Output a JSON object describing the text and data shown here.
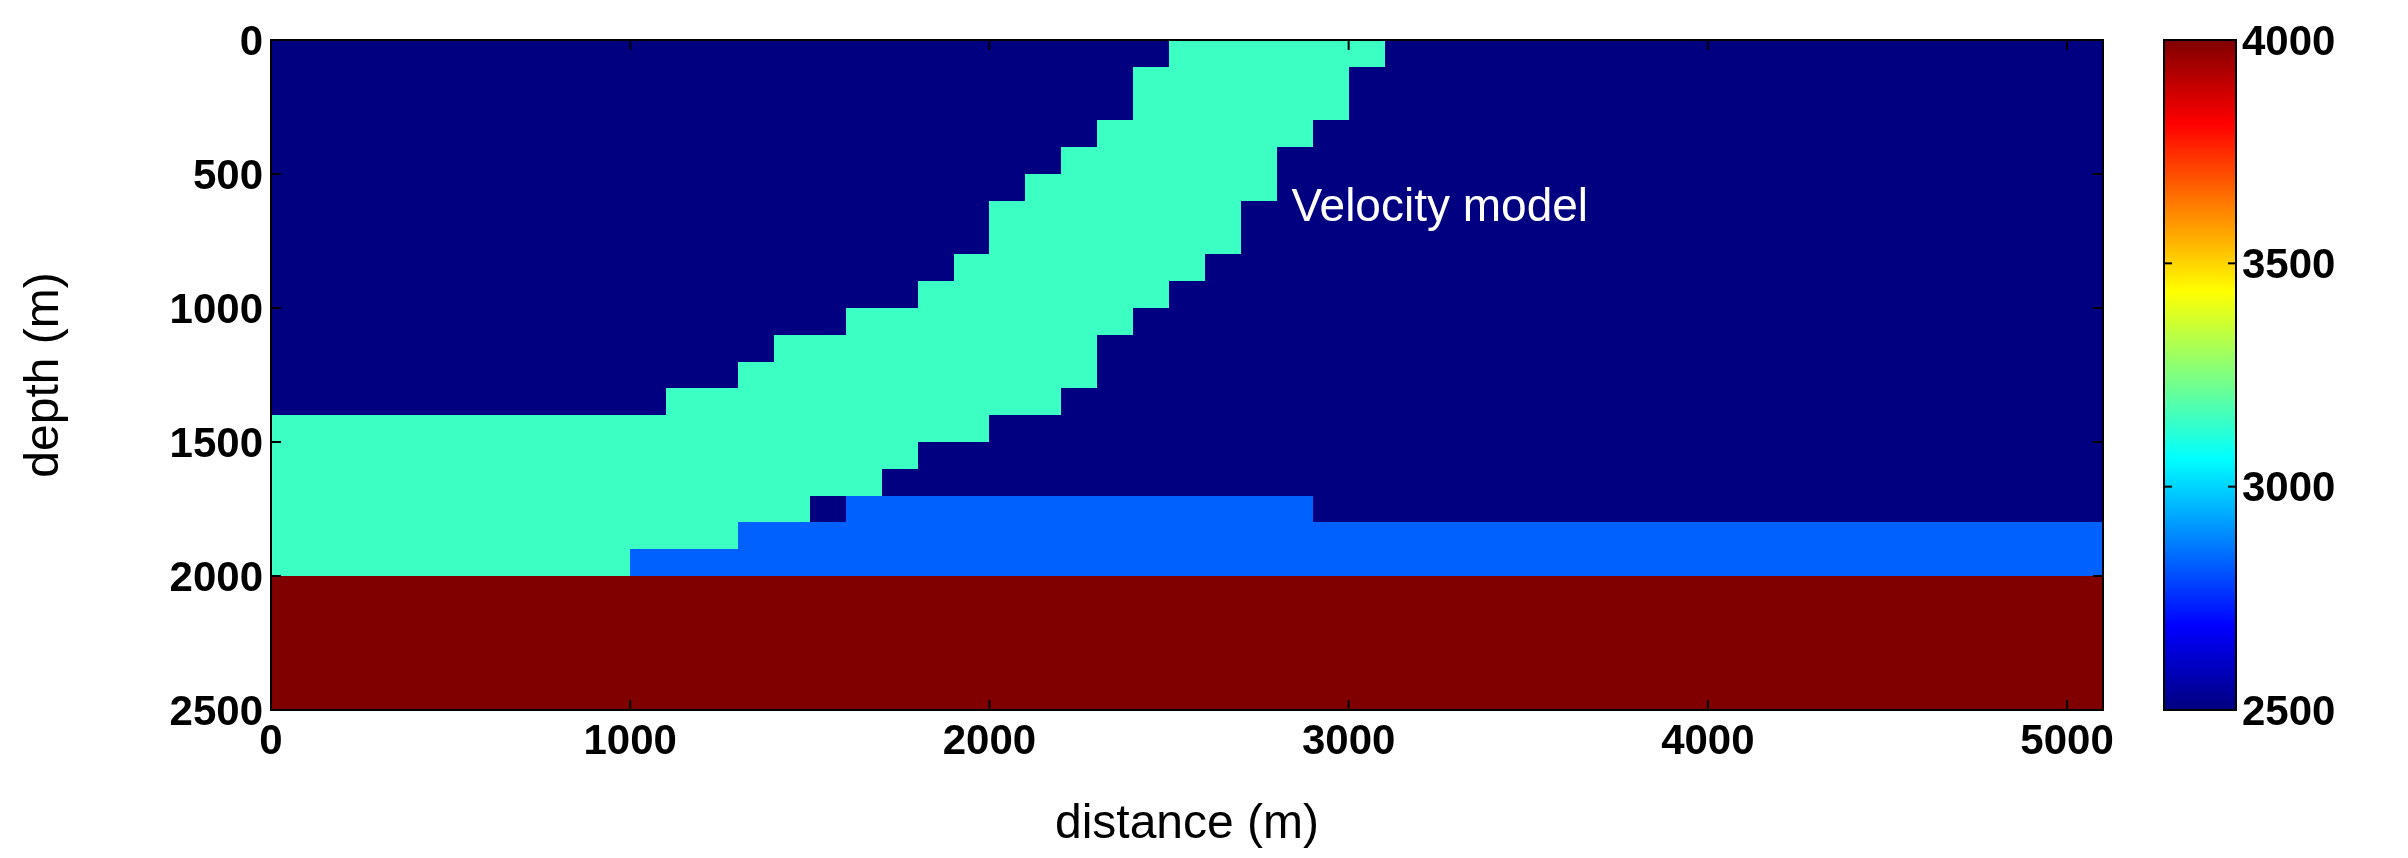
{
  "chart_data": {
    "type": "heatmap",
    "xlabel": "distance (m)",
    "ylabel": "depth (m)",
    "annotations": [
      "Velocity model"
    ],
    "xlim": [
      0,
      5100
    ],
    "xticks": [
      0,
      1000,
      2000,
      3000,
      4000,
      5000
    ],
    "ylim": [
      2500,
      0
    ],
    "yticks": [
      0,
      500,
      1000,
      1500,
      2000,
      2500
    ],
    "clim": [
      2500,
      4000
    ],
    "cticks": [
      2500,
      3000,
      3500,
      4000
    ],
    "x": [
      50,
      150,
      250,
      350,
      450,
      550,
      650,
      750,
      850,
      950,
      1050,
      1150,
      1250,
      1350,
      1450,
      1550,
      1650,
      1750,
      1850,
      1950,
      2050,
      2150,
      2250,
      2350,
      2450,
      2550,
      2650,
      2750,
      2850,
      2950,
      3050,
      3150,
      3250,
      3350,
      3450,
      3550,
      3650,
      3750,
      3850,
      3950,
      4050,
      4150,
      4250,
      4350,
      4450,
      4550,
      4650,
      4750,
      4850,
      4950,
      5050
    ],
    "y": [
      50,
      150,
      250,
      350,
      450,
      550,
      650,
      750,
      850,
      950,
      1050,
      1150,
      1250,
      1350,
      1450,
      1550,
      1650,
      1750,
      1850,
      1950,
      2050,
      2150,
      2250,
      2350,
      2450
    ],
    "cells": [
      [
        2500,
        2500,
        2500,
        2500,
        2500,
        2500,
        2500,
        2500,
        2500,
        2500,
        2500,
        2500,
        2500,
        2500,
        2500,
        2500,
        2500,
        2500,
        2500,
        2500,
        2500,
        2500,
        2500,
        2500,
        2500,
        3150,
        3150,
        3150,
        3150,
        3150,
        3150,
        2500,
        2500,
        2500,
        2500,
        2500,
        2500,
        2500,
        2500,
        2500,
        2500,
        2500,
        2500,
        2500,
        2500,
        2500,
        2500,
        2500,
        2500,
        2500,
        2500
      ],
      [
        2500,
        2500,
        2500,
        2500,
        2500,
        2500,
        2500,
        2500,
        2500,
        2500,
        2500,
        2500,
        2500,
        2500,
        2500,
        2500,
        2500,
        2500,
        2500,
        2500,
        2500,
        2500,
        2500,
        2500,
        3150,
        3150,
        3150,
        3150,
        3150,
        3150,
        2500,
        2500,
        2500,
        2500,
        2500,
        2500,
        2500,
        2500,
        2500,
        2500,
        2500,
        2500,
        2500,
        2500,
        2500,
        2500,
        2500,
        2500,
        2500,
        2500,
        2500
      ],
      [
        2500,
        2500,
        2500,
        2500,
        2500,
        2500,
        2500,
        2500,
        2500,
        2500,
        2500,
        2500,
        2500,
        2500,
        2500,
        2500,
        2500,
        2500,
        2500,
        2500,
        2500,
        2500,
        2500,
        2500,
        3150,
        3150,
        3150,
        3150,
        3150,
        3150,
        2500,
        2500,
        2500,
        2500,
        2500,
        2500,
        2500,
        2500,
        2500,
        2500,
        2500,
        2500,
        2500,
        2500,
        2500,
        2500,
        2500,
        2500,
        2500,
        2500,
        2500
      ],
      [
        2500,
        2500,
        2500,
        2500,
        2500,
        2500,
        2500,
        2500,
        2500,
        2500,
        2500,
        2500,
        2500,
        2500,
        2500,
        2500,
        2500,
        2500,
        2500,
        2500,
        2500,
        2500,
        2500,
        3150,
        3150,
        3150,
        3150,
        3150,
        3150,
        2500,
        2500,
        2500,
        2500,
        2500,
        2500,
        2500,
        2500,
        2500,
        2500,
        2500,
        2500,
        2500,
        2500,
        2500,
        2500,
        2500,
        2500,
        2500,
        2500,
        2500,
        2500
      ],
      [
        2500,
        2500,
        2500,
        2500,
        2500,
        2500,
        2500,
        2500,
        2500,
        2500,
        2500,
        2500,
        2500,
        2500,
        2500,
        2500,
        2500,
        2500,
        2500,
        2500,
        2500,
        2500,
        3150,
        3150,
        3150,
        3150,
        3150,
        3150,
        2500,
        2500,
        2500,
        2500,
        2500,
        2500,
        2500,
        2500,
        2500,
        2500,
        2500,
        2500,
        2500,
        2500,
        2500,
        2500,
        2500,
        2500,
        2500,
        2500,
        2500,
        2500,
        2500
      ],
      [
        2500,
        2500,
        2500,
        2500,
        2500,
        2500,
        2500,
        2500,
        2500,
        2500,
        2500,
        2500,
        2500,
        2500,
        2500,
        2500,
        2500,
        2500,
        2500,
        2500,
        2500,
        3150,
        3150,
        3150,
        3150,
        3150,
        3150,
        3150,
        2500,
        2500,
        2500,
        2500,
        2500,
        2500,
        2500,
        2500,
        2500,
        2500,
        2500,
        2500,
        2500,
        2500,
        2500,
        2500,
        2500,
        2500,
        2500,
        2500,
        2500,
        2500,
        2500
      ],
      [
        2500,
        2500,
        2500,
        2500,
        2500,
        2500,
        2500,
        2500,
        2500,
        2500,
        2500,
        2500,
        2500,
        2500,
        2500,
        2500,
        2500,
        2500,
        2500,
        2500,
        3150,
        3150,
        3150,
        3150,
        3150,
        3150,
        3150,
        2500,
        2500,
        2500,
        2500,
        2500,
        2500,
        2500,
        2500,
        2500,
        2500,
        2500,
        2500,
        2500,
        2500,
        2500,
        2500,
        2500,
        2500,
        2500,
        2500,
        2500,
        2500,
        2500,
        2500
      ],
      [
        2500,
        2500,
        2500,
        2500,
        2500,
        2500,
        2500,
        2500,
        2500,
        2500,
        2500,
        2500,
        2500,
        2500,
        2500,
        2500,
        2500,
        2500,
        2500,
        2500,
        3150,
        3150,
        3150,
        3150,
        3150,
        3150,
        3150,
        2500,
        2500,
        2500,
        2500,
        2500,
        2500,
        2500,
        2500,
        2500,
        2500,
        2500,
        2500,
        2500,
        2500,
        2500,
        2500,
        2500,
        2500,
        2500,
        2500,
        2500,
        2500,
        2500,
        2500
      ],
      [
        2500,
        2500,
        2500,
        2500,
        2500,
        2500,
        2500,
        2500,
        2500,
        2500,
        2500,
        2500,
        2500,
        2500,
        2500,
        2500,
        2500,
        2500,
        2500,
        3150,
        3150,
        3150,
        3150,
        3150,
        3150,
        3150,
        2500,
        2500,
        2500,
        2500,
        2500,
        2500,
        2500,
        2500,
        2500,
        2500,
        2500,
        2500,
        2500,
        2500,
        2500,
        2500,
        2500,
        2500,
        2500,
        2500,
        2500,
        2500,
        2500,
        2500,
        2500
      ],
      [
        2500,
        2500,
        2500,
        2500,
        2500,
        2500,
        2500,
        2500,
        2500,
        2500,
        2500,
        2500,
        2500,
        2500,
        2500,
        2500,
        2500,
        2500,
        3150,
        3150,
        3150,
        3150,
        3150,
        3150,
        3150,
        2500,
        2500,
        2500,
        2500,
        2500,
        2500,
        2500,
        2500,
        2500,
        2500,
        2500,
        2500,
        2500,
        2500,
        2500,
        2500,
        2500,
        2500,
        2500,
        2500,
        2500,
        2500,
        2500,
        2500,
        2500,
        2500
      ],
      [
        2500,
        2500,
        2500,
        2500,
        2500,
        2500,
        2500,
        2500,
        2500,
        2500,
        2500,
        2500,
        2500,
        2500,
        2500,
        2500,
        3150,
        3150,
        3150,
        3150,
        3150,
        3150,
        3150,
        3150,
        2500,
        2500,
        2500,
        2500,
        2500,
        2500,
        2500,
        2500,
        2500,
        2500,
        2500,
        2500,
        2500,
        2500,
        2500,
        2500,
        2500,
        2500,
        2500,
        2500,
        2500,
        2500,
        2500,
        2500,
        2500,
        2500,
        2500
      ],
      [
        2500,
        2500,
        2500,
        2500,
        2500,
        2500,
        2500,
        2500,
        2500,
        2500,
        2500,
        2500,
        2500,
        2500,
        3150,
        3150,
        3150,
        3150,
        3150,
        3150,
        3150,
        3150,
        3150,
        2500,
        2500,
        2500,
        2500,
        2500,
        2500,
        2500,
        2500,
        2500,
        2500,
        2500,
        2500,
        2500,
        2500,
        2500,
        2500,
        2500,
        2500,
        2500,
        2500,
        2500,
        2500,
        2500,
        2500,
        2500,
        2500,
        2500,
        2500
      ],
      [
        2500,
        2500,
        2500,
        2500,
        2500,
        2500,
        2500,
        2500,
        2500,
        2500,
        2500,
        2500,
        2500,
        3150,
        3150,
        3150,
        3150,
        3150,
        3150,
        3150,
        3150,
        3150,
        3150,
        2500,
        2500,
        2500,
        2500,
        2500,
        2500,
        2500,
        2500,
        2500,
        2500,
        2500,
        2500,
        2500,
        2500,
        2500,
        2500,
        2500,
        2500,
        2500,
        2500,
        2500,
        2500,
        2500,
        2500,
        2500,
        2500,
        2500,
        2500
      ],
      [
        2500,
        2500,
        2500,
        2500,
        2500,
        2500,
        2500,
        2500,
        2500,
        2500,
        2500,
        3150,
        3150,
        3150,
        3150,
        3150,
        3150,
        3150,
        3150,
        3150,
        3150,
        3150,
        2500,
        2500,
        2500,
        2500,
        2500,
        2500,
        2500,
        2500,
        2500,
        2500,
        2500,
        2500,
        2500,
        2500,
        2500,
        2500,
        2500,
        2500,
        2500,
        2500,
        2500,
        2500,
        2500,
        2500,
        2500,
        2500,
        2500,
        2500,
        2500
      ],
      [
        3150,
        3150,
        3150,
        3150,
        3150,
        3150,
        3150,
        3150,
        3150,
        3150,
        3150,
        3150,
        3150,
        3150,
        3150,
        3150,
        3150,
        3150,
        3150,
        3150,
        2500,
        2500,
        2500,
        2500,
        2500,
        2500,
        2500,
        2500,
        2500,
        2500,
        2500,
        2500,
        2500,
        2500,
        2500,
        2500,
        2500,
        2500,
        2500,
        2500,
        2500,
        2500,
        2500,
        2500,
        2500,
        2500,
        2500,
        2500,
        2500,
        2500,
        2500
      ],
      [
        3150,
        3150,
        3150,
        3150,
        3150,
        3150,
        3150,
        3150,
        3150,
        3150,
        3150,
        3150,
        3150,
        3150,
        3150,
        3150,
        3150,
        3150,
        2500,
        2500,
        2500,
        2500,
        2500,
        2500,
        2500,
        2500,
        2500,
        2500,
        2500,
        2500,
        2500,
        2500,
        2500,
        2500,
        2500,
        2500,
        2500,
        2500,
        2500,
        2500,
        2500,
        2500,
        2500,
        2500,
        2500,
        2500,
        2500,
        2500,
        2500,
        2500,
        2500
      ],
      [
        3150,
        3150,
        3150,
        3150,
        3150,
        3150,
        3150,
        3150,
        3150,
        3150,
        3150,
        3150,
        3150,
        3150,
        3150,
        3150,
        3150,
        2500,
        2500,
        2500,
        2500,
        2500,
        2500,
        2500,
        2500,
        2500,
        2500,
        2500,
        2500,
        2500,
        2500,
        2500,
        2500,
        2500,
        2500,
        2500,
        2500,
        2500,
        2500,
        2500,
        2500,
        2500,
        2500,
        2500,
        2500,
        2500,
        2500,
        2500,
        2500,
        2500,
        2500
      ],
      [
        3150,
        3150,
        3150,
        3150,
        3150,
        3150,
        3150,
        3150,
        3150,
        3150,
        3150,
        3150,
        3150,
        3150,
        3150,
        2500,
        2830,
        2830,
        2830,
        2830,
        2830,
        2830,
        2830,
        2830,
        2830,
        2830,
        2830,
        2830,
        2830,
        2500,
        2500,
        2500,
        2500,
        2500,
        2500,
        2500,
        2500,
        2500,
        2500,
        2500,
        2500,
        2500,
        2500,
        2500,
        2500,
        2500,
        2500,
        2500,
        2500,
        2500,
        2500
      ],
      [
        3150,
        3150,
        3150,
        3150,
        3150,
        3150,
        3150,
        3150,
        3150,
        3150,
        3150,
        3150,
        3150,
        2830,
        2830,
        2830,
        2830,
        2830,
        2830,
        2830,
        2830,
        2830,
        2830,
        2830,
        2830,
        2830,
        2830,
        2830,
        2830,
        2830,
        2830,
        2830,
        2830,
        2830,
        2830,
        2830,
        2830,
        2830,
        2830,
        2830,
        2830,
        2830,
        2830,
        2830,
        2830,
        2830,
        2830,
        2830,
        2830,
        2830,
        2830
      ],
      [
        3150,
        3150,
        3150,
        3150,
        3150,
        3150,
        3150,
        3150,
        3150,
        3150,
        2830,
        2830,
        2830,
        2830,
        2830,
        2830,
        2830,
        2830,
        2830,
        2830,
        2830,
        2830,
        2830,
        2830,
        2830,
        2830,
        2830,
        2830,
        2830,
        2830,
        2830,
        2830,
        2830,
        2830,
        2830,
        2830,
        2830,
        2830,
        2830,
        2830,
        2830,
        2830,
        2830,
        2830,
        2830,
        2830,
        2830,
        2830,
        2830,
        2830,
        2830
      ],
      [
        4000,
        4000,
        4000,
        4000,
        4000,
        4000,
        4000,
        4000,
        4000,
        4000,
        4000,
        4000,
        4000,
        4000,
        4000,
        4000,
        4000,
        4000,
        4000,
        4000,
        4000,
        4000,
        4000,
        4000,
        4000,
        4000,
        4000,
        4000,
        4000,
        4000,
        4000,
        4000,
        4000,
        4000,
        4000,
        4000,
        4000,
        4000,
        4000,
        4000,
        4000,
        4000,
        4000,
        4000,
        4000,
        4000,
        4000,
        4000,
        4000,
        4000,
        4000
      ],
      [
        4000,
        4000,
        4000,
        4000,
        4000,
        4000,
        4000,
        4000,
        4000,
        4000,
        4000,
        4000,
        4000,
        4000,
        4000,
        4000,
        4000,
        4000,
        4000,
        4000,
        4000,
        4000,
        4000,
        4000,
        4000,
        4000,
        4000,
        4000,
        4000,
        4000,
        4000,
        4000,
        4000,
        4000,
        4000,
        4000,
        4000,
        4000,
        4000,
        4000,
        4000,
        4000,
        4000,
        4000,
        4000,
        4000,
        4000,
        4000,
        4000,
        4000,
        4000
      ],
      [
        4000,
        4000,
        4000,
        4000,
        4000,
        4000,
        4000,
        4000,
        4000,
        4000,
        4000,
        4000,
        4000,
        4000,
        4000,
        4000,
        4000,
        4000,
        4000,
        4000,
        4000,
        4000,
        4000,
        4000,
        4000,
        4000,
        4000,
        4000,
        4000,
        4000,
        4000,
        4000,
        4000,
        4000,
        4000,
        4000,
        4000,
        4000,
        4000,
        4000,
        4000,
        4000,
        4000,
        4000,
        4000,
        4000,
        4000,
        4000,
        4000,
        4000,
        4000
      ],
      [
        4000,
        4000,
        4000,
        4000,
        4000,
        4000,
        4000,
        4000,
        4000,
        4000,
        4000,
        4000,
        4000,
        4000,
        4000,
        4000,
        4000,
        4000,
        4000,
        4000,
        4000,
        4000,
        4000,
        4000,
        4000,
        4000,
        4000,
        4000,
        4000,
        4000,
        4000,
        4000,
        4000,
        4000,
        4000,
        4000,
        4000,
        4000,
        4000,
        4000,
        4000,
        4000,
        4000,
        4000,
        4000,
        4000,
        4000,
        4000,
        4000,
        4000,
        4000
      ],
      [
        4000,
        4000,
        4000,
        4000,
        4000,
        4000,
        4000,
        4000,
        4000,
        4000,
        4000,
        4000,
        4000,
        4000,
        4000,
        4000,
        4000,
        4000,
        4000,
        4000,
        4000,
        4000,
        4000,
        4000,
        4000,
        4000,
        4000,
        4000,
        4000,
        4000,
        4000,
        4000,
        4000,
        4000,
        4000,
        4000,
        4000,
        4000,
        4000,
        4000,
        4000,
        4000,
        4000,
        4000,
        4000,
        4000,
        4000,
        4000,
        4000,
        4000,
        4000
      ]
    ]
  }
}
